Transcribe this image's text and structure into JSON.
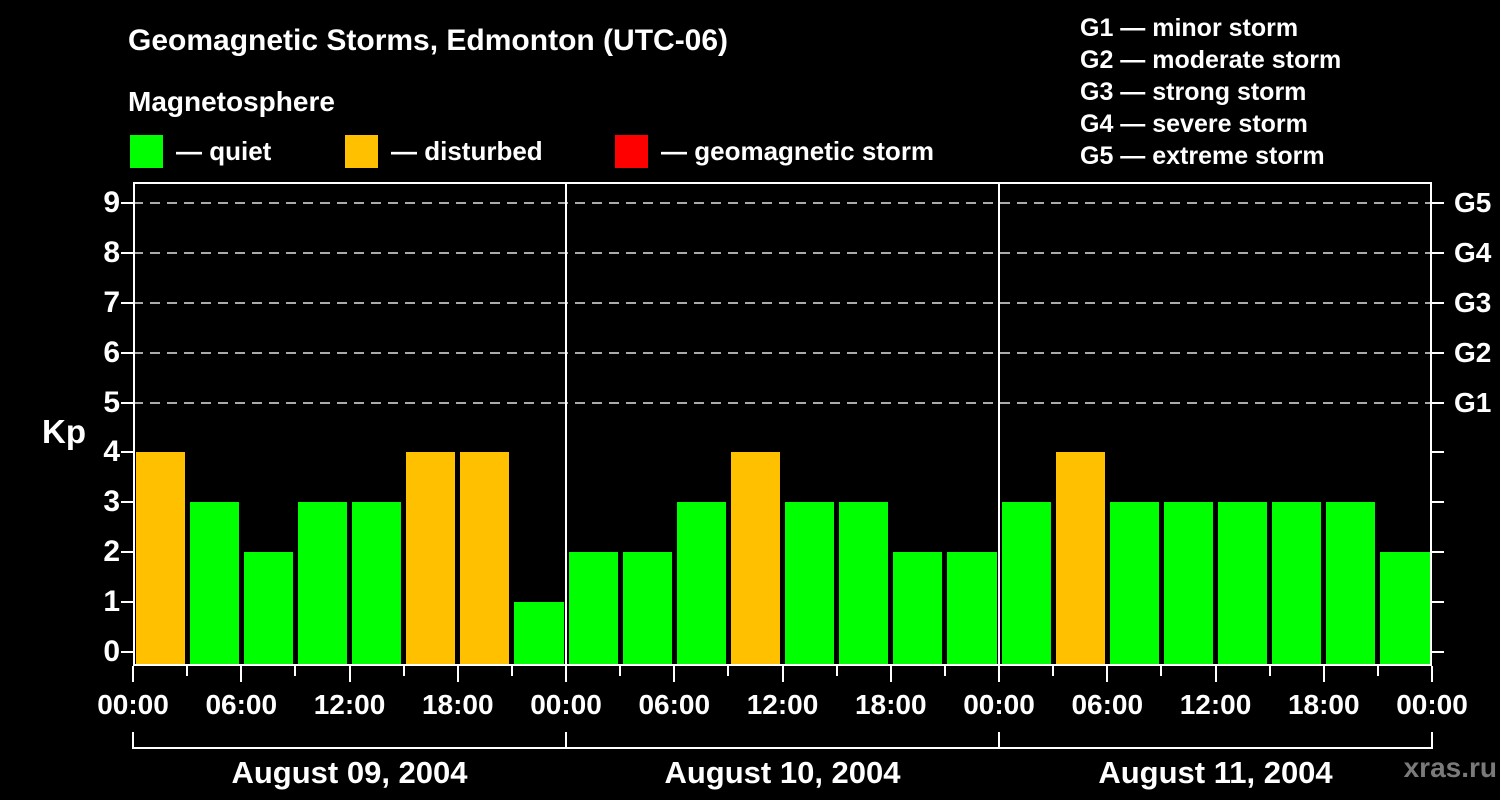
{
  "header": {
    "title": "Geomagnetic Storms, Edmonton (UTC-06)",
    "subtitle": "Magnetosphere"
  },
  "kp_legend": {
    "items": [
      {
        "name": "quiet",
        "label": "— quiet",
        "color": "#00ff00"
      },
      {
        "name": "disturbed",
        "label": "— disturbed",
        "color": "#ffc000"
      },
      {
        "name": "storm",
        "label": "— geomagnetic storm",
        "color": "#ff0000"
      }
    ]
  },
  "g_legend": {
    "lines": [
      "G1 — minor storm",
      "G2 — moderate storm",
      "G3 — strong storm",
      "G4 — severe storm",
      "G5 — extreme storm"
    ]
  },
  "footer": {
    "watermark": "xras.ru"
  },
  "chart_data": {
    "type": "bar",
    "title": "Geomagnetic Storms, Edmonton (UTC-06)",
    "subtitle": "Magnetosphere",
    "ylabel": "Kp",
    "ylim": [
      0,
      9.4
    ],
    "y_ticks": [
      "0",
      "1",
      "2",
      "3",
      "4",
      "5",
      "6",
      "7",
      "8",
      "9"
    ],
    "right_axis": {
      "ticks": [
        5,
        6,
        7,
        8,
        9
      ],
      "labels": [
        "G1",
        "G2",
        "G3",
        "G4",
        "G5"
      ]
    },
    "grid": "dashed horizontal lines at Kp 5–9",
    "legend_position": "top-left",
    "bar_interval_hours": 3,
    "x_tick_labels": [
      "00:00",
      "06:00",
      "12:00",
      "18:00",
      "00:00",
      "06:00",
      "12:00",
      "18:00",
      "00:00",
      "06:00",
      "12:00",
      "18:00",
      "00:00"
    ],
    "series_colors": {
      "kp_le_3": "#00ff00",
      "kp_4": "#ffc000",
      "kp_ge_5": "#ff0000"
    },
    "days": [
      {
        "date": "August 09, 2004",
        "values": [
          4,
          3,
          2,
          3,
          3,
          4,
          4,
          1
        ]
      },
      {
        "date": "August 10, 2004",
        "values": [
          2,
          2,
          3,
          4,
          3,
          3,
          2,
          2
        ]
      },
      {
        "date": "August 11, 2004",
        "values": [
          3,
          4,
          3,
          3,
          3,
          3,
          3,
          2
        ]
      }
    ]
  }
}
